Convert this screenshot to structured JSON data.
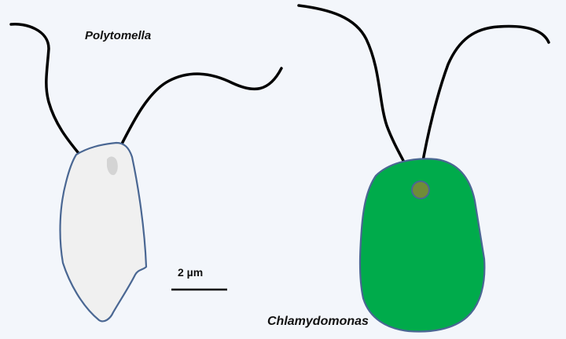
{
  "organisms": {
    "polytomella": {
      "name": "Polytomella",
      "body_color": "#f0f0f0",
      "outline_color": "#4a6793",
      "spot_color": "#d4d4d4"
    },
    "chlamydomonas": {
      "name": "Chlamydomonas",
      "body_color": "#00ab4b",
      "outline_color": "#4a6793",
      "eyespot_color": "#6f8c38"
    }
  },
  "scale_bar": {
    "label": "2 µm"
  },
  "colors": {
    "background": "#f3f6fb",
    "flagellum": "#000000"
  }
}
